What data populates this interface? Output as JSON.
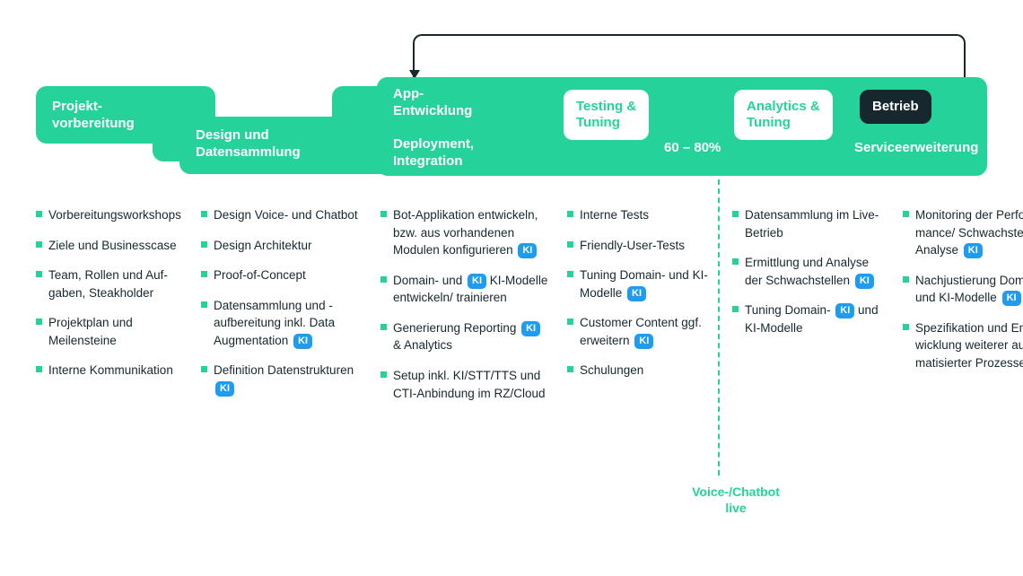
{
  "colors": {
    "green": "#25d39a",
    "dark": "#16282e",
    "blue": "#1f9cf0",
    "white": "#ffffff",
    "text": "#16282e"
  },
  "band": {
    "t1": "Projekt-\nvorbereitung",
    "t2": "Design und\nDatensammlung",
    "t3a": "App-\nEntwicklung",
    "t3b": "Deployment,\nIntegration",
    "pill_testing": "Testing &\nTuning",
    "pill_analytics": "Analytics &\nTuning",
    "pill_betrieb": "Betrieb",
    "service": "Serviceerweiterung",
    "percent": "60 – 80%"
  },
  "ki_label": "KI",
  "live_label": "Voice-/Chatbot\nlive",
  "cols": [
    [
      {
        "t": "Vorbereitungswork­shops"
      },
      {
        "t": "Ziele und Businesscase"
      },
      {
        "t": "Team, Rollen und Auf­gaben, Steakholder"
      },
      {
        "t": "Projektplan und Meilensteine"
      },
      {
        "t": "Interne Kommunikation"
      }
    ],
    [
      {
        "t": "Design Voice- und Chatbot"
      },
      {
        "t": "Design Architektur"
      },
      {
        "t": "Proof-of-Concept"
      },
      {
        "t": "Datensammlung und -aufbereitung inkl. Data Augmentation",
        "ki": true
      },
      {
        "t": "Definition Daten­strukturen",
        "ki": true
      }
    ],
    [
      {
        "t": "Bot-Applikation entwi­ckeln, bzw. aus vorhan­denen Modulen konfi­gurieren",
        "ki": true
      },
      {
        "t": "Domain- und KI-Model­le entwickeln/ trainieren",
        "ki": true,
        "ki_mid": true
      },
      {
        "t": "Generierung Reporting & Analytics",
        "ki": true,
        "ki_mid": true
      },
      {
        "t": "Setup inkl. KI/STT/TTS und CTI-Anbindung im RZ/Cloud"
      }
    ],
    [
      {
        "t": "Interne Tests"
      },
      {
        "t": "Friendly-User-Tests"
      },
      {
        "t": "Tuning Domain- und KI-Modelle",
        "ki": true
      },
      {
        "t": "Customer Content ggf. erweitern",
        "ki": true
      },
      {
        "t": "Schulungen"
      }
    ],
    [
      {
        "t": "Datensammlung im Live-Betrieb"
      },
      {
        "t": "Ermittlung und Analyse der Schwachstellen",
        "ki": true
      },
      {
        "t": "Tuning Domain- und KI-Modelle",
        "ki": true,
        "ki_mid": true
      }
    ],
    [
      {
        "t": "Monitoring der Perfor­mance/ Schwachstel­len-Analyse",
        "ki": true
      },
      {
        "t": "Nachjustierung Domain- und KI-Modelle",
        "ki": true
      },
      {
        "t": "Spezifikation und Ent­wicklung weiterer auto­matisierter Prozesse"
      }
    ]
  ]
}
